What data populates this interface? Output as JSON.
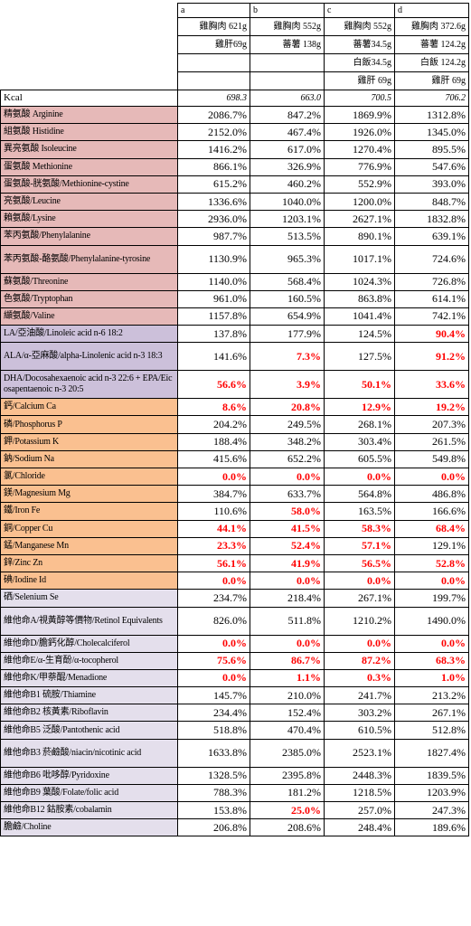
{
  "header": {
    "columns": [
      {
        "id": "a",
        "line1": "雞胸肉 621g",
        "line2": "雞肝69g",
        "line3": "",
        "line4": ""
      },
      {
        "id": "b",
        "line1": "雞胸肉 552g",
        "line2": "蕃薯 138g",
        "line3": "",
        "line4": ""
      },
      {
        "id": "c",
        "line1": "雞胸肉 552g",
        "line2": "蕃薯34.5g",
        "line3": "白飯34.5g",
        "line4": "雞肝 69g"
      },
      {
        "id": "d",
        "line1": "雞胸肉 372.6g",
        "line2": "蕃薯 124.2g",
        "line3": "白飯 124.2g",
        "line4": "雞肝 69g"
      }
    ]
  },
  "kcal": {
    "label": "Kcal",
    "values": [
      "698.3",
      "663.0",
      "700.5",
      "706.2"
    ]
  },
  "rows": [
    {
      "label": "精氨酸 Arginine",
      "group": "pink",
      "values": [
        "2086.7%",
        "847.2%",
        "1869.9%",
        "1312.8%"
      ],
      "red": [
        false,
        false,
        false,
        false
      ]
    },
    {
      "label": "組氨酸 Histidine",
      "group": "pink",
      "values": [
        "2152.0%",
        "467.4%",
        "1926.0%",
        "1345.0%"
      ],
      "red": [
        false,
        false,
        false,
        false
      ]
    },
    {
      "label": "異亮氨酸 Isoleucine",
      "group": "pink",
      "values": [
        "1416.2%",
        "617.0%",
        "1270.4%",
        "895.5%"
      ],
      "red": [
        false,
        false,
        false,
        false
      ]
    },
    {
      "label": "蛋氨酸 Methionine",
      "group": "pink",
      "values": [
        "866.1%",
        "326.9%",
        "776.9%",
        "547.6%"
      ],
      "red": [
        false,
        false,
        false,
        false
      ]
    },
    {
      "label": "蛋氨酸-胱氨酸/Methionine-cystine",
      "group": "pink",
      "values": [
        "615.2%",
        "460.2%",
        "552.9%",
        "393.0%"
      ],
      "red": [
        false,
        false,
        false,
        false
      ]
    },
    {
      "label": "亮氨酸/Leucine",
      "group": "pink",
      "values": [
        "1336.6%",
        "1040.0%",
        "1200.0%",
        "848.7%"
      ],
      "red": [
        false,
        false,
        false,
        false
      ]
    },
    {
      "label": "賴氨酸/Lysine",
      "group": "pink",
      "values": [
        "2936.0%",
        "1203.1%",
        "2627.1%",
        "1832.8%"
      ],
      "red": [
        false,
        false,
        false,
        false
      ]
    },
    {
      "label": "苯丙氨酸/Phenylalanine",
      "group": "pink",
      "values": [
        "987.7%",
        "513.5%",
        "890.1%",
        "639.1%"
      ],
      "red": [
        false,
        false,
        false,
        false
      ]
    },
    {
      "label": "苯丙氨酸-酪氨酸/Phenylalanine-tyrosine",
      "group": "pink",
      "values": [
        "1130.9%",
        "965.3%",
        "1017.1%",
        "724.6%"
      ],
      "red": [
        false,
        false,
        false,
        false
      ],
      "tall": true
    },
    {
      "label": "蘇氨酸/Threonine",
      "group": "pink",
      "values": [
        "1140.0%",
        "568.4%",
        "1024.3%",
        "726.8%"
      ],
      "red": [
        false,
        false,
        false,
        false
      ]
    },
    {
      "label": "色氨酸/Tryptophan",
      "group": "pink",
      "values": [
        "961.0%",
        "160.5%",
        "863.8%",
        "614.1%"
      ],
      "red": [
        false,
        false,
        false,
        false
      ]
    },
    {
      "label": "纈氨酸/Valine",
      "group": "pink",
      "values": [
        "1157.8%",
        "654.9%",
        "1041.4%",
        "742.1%"
      ],
      "red": [
        false,
        false,
        false,
        false
      ]
    },
    {
      "label": "LA/亞油酸/Linoleic acid n-6 18:2",
      "group": "lav",
      "values": [
        "137.8%",
        "177.9%",
        "124.5%",
        "90.4%"
      ],
      "red": [
        false,
        false,
        false,
        true
      ]
    },
    {
      "label": "ALA/α-亞麻酸/alpha-Linolenic acid n-3 18:3",
      "group": "lav",
      "values": [
        "141.6%",
        "7.3%",
        "127.5%",
        "91.2%"
      ],
      "red": [
        false,
        true,
        false,
        true
      ],
      "tall": true
    },
    {
      "label": "DHA/Docosahexaenoic acid n-3 22:6 + EPA/Eicosapentaenoic n-3 20:5",
      "group": "lav",
      "values": [
        "56.6%",
        "3.9%",
        "50.1%",
        "33.6%"
      ],
      "red": [
        true,
        true,
        true,
        true
      ],
      "tall": true
    },
    {
      "label": "鈣/Calcium Ca",
      "group": "orange",
      "values": [
        "8.6%",
        "20.8%",
        "12.9%",
        "19.2%"
      ],
      "red": [
        true,
        true,
        true,
        true
      ]
    },
    {
      "label": "磷/Phosphorus P",
      "group": "orange",
      "values": [
        "204.2%",
        "249.5%",
        "268.1%",
        "207.3%"
      ],
      "red": [
        false,
        false,
        false,
        false
      ]
    },
    {
      "label": "鉀/Potassium K",
      "group": "orange",
      "values": [
        "188.4%",
        "348.2%",
        "303.4%",
        "261.5%"
      ],
      "red": [
        false,
        false,
        false,
        false
      ]
    },
    {
      "label": "鈉/Sodium Na",
      "group": "orange",
      "values": [
        "415.6%",
        "652.2%",
        "605.5%",
        "549.8%"
      ],
      "red": [
        false,
        false,
        false,
        false
      ]
    },
    {
      "label": "氯/Chloride",
      "group": "orange",
      "values": [
        "0.0%",
        "0.0%",
        "0.0%",
        "0.0%"
      ],
      "red": [
        true,
        true,
        true,
        true
      ]
    },
    {
      "label": "鎂/Magnesium Mg",
      "group": "orange",
      "values": [
        "384.7%",
        "633.7%",
        "564.8%",
        "486.8%"
      ],
      "red": [
        false,
        false,
        false,
        false
      ]
    },
    {
      "label": "鐵/Iron Fe",
      "group": "orange",
      "values": [
        "110.6%",
        "58.0%",
        "163.5%",
        "166.6%"
      ],
      "red": [
        false,
        true,
        false,
        false
      ]
    },
    {
      "label": "銅/Copper Cu",
      "group": "orange",
      "values": [
        "44.1%",
        "41.5%",
        "58.3%",
        "68.4%"
      ],
      "red": [
        true,
        true,
        true,
        true
      ]
    },
    {
      "label": "錳/Manganese Mn",
      "group": "orange",
      "values": [
        "23.3%",
        "52.4%",
        "57.1%",
        "129.1%"
      ],
      "red": [
        true,
        true,
        true,
        false
      ]
    },
    {
      "label": "鋅/Zinc Zn",
      "group": "orange",
      "values": [
        "56.1%",
        "41.9%",
        "56.5%",
        "52.8%"
      ],
      "red": [
        true,
        true,
        true,
        true
      ]
    },
    {
      "label": "碘/Iodine Id",
      "group": "orange",
      "values": [
        "0.0%",
        "0.0%",
        "0.0%",
        "0.0%"
      ],
      "red": [
        true,
        true,
        true,
        true
      ]
    },
    {
      "label": "硒/Selenium Se",
      "group": "lilac",
      "values": [
        "234.7%",
        "218.4%",
        "267.1%",
        "199.7%"
      ],
      "red": [
        false,
        false,
        false,
        false
      ]
    },
    {
      "label": "維他命A/視黃醇等價物/Retinol Equivalents",
      "group": "lilac",
      "values": [
        "826.0%",
        "511.8%",
        "1210.2%",
        "1490.0%"
      ],
      "red": [
        false,
        false,
        false,
        false
      ],
      "tall": true
    },
    {
      "label": "維他命D/膽鈣化醇/Cholecalciferol",
      "group": "lilac",
      "values": [
        "0.0%",
        "0.0%",
        "0.0%",
        "0.0%"
      ],
      "red": [
        true,
        true,
        true,
        true
      ]
    },
    {
      "label": "維他命E/α-生育酚/α-tocopherol",
      "group": "lilac",
      "values": [
        "75.6%",
        "86.7%",
        "87.2%",
        "68.3%"
      ],
      "red": [
        true,
        true,
        true,
        true
      ]
    },
    {
      "label": "維他命K/甲萘醌/Menadione",
      "group": "lilac",
      "values": [
        "0.0%",
        "1.1%",
        "0.3%",
        "1.0%"
      ],
      "red": [
        true,
        true,
        true,
        true
      ]
    },
    {
      "label": "維他命B1 硫胺/Thiamine",
      "group": "lilac",
      "values": [
        "145.7%",
        "210.0%",
        "241.7%",
        "213.2%"
      ],
      "red": [
        false,
        false,
        false,
        false
      ]
    },
    {
      "label": "維他命B2 核黃素/Riboflavin",
      "group": "lilac",
      "values": [
        "234.4%",
        "152.4%",
        "303.2%",
        "267.1%"
      ],
      "red": [
        false,
        false,
        false,
        false
      ]
    },
    {
      "label": "維他命B5 泛酸/Pantothenic acid",
      "group": "lilac",
      "values": [
        "518.8%",
        "470.4%",
        "610.5%",
        "512.8%"
      ],
      "red": [
        false,
        false,
        false,
        false
      ]
    },
    {
      "label": "維他命B3 菸鹼酸/niacin/nicotinic acid",
      "group": "lilac",
      "values": [
        "1633.8%",
        "2385.0%",
        "2523.1%",
        "1827.4%"
      ],
      "red": [
        false,
        false,
        false,
        false
      ],
      "tall": true
    },
    {
      "label": "維他命B6 吡哆醇/Pyridoxine",
      "group": "lilac",
      "values": [
        "1328.5%",
        "2395.8%",
        "2448.3%",
        "1839.5%"
      ],
      "red": [
        false,
        false,
        false,
        false
      ]
    },
    {
      "label": "維他命B9 葉酸/Folate/folic acid",
      "group": "lilac",
      "values": [
        "788.3%",
        "181.2%",
        "1218.5%",
        "1203.9%"
      ],
      "red": [
        false,
        false,
        false,
        false
      ]
    },
    {
      "label": "維他命B12 鈷胺素/cobalamin",
      "group": "lilac",
      "values": [
        "153.8%",
        "25.0%",
        "257.0%",
        "247.3%"
      ],
      "red": [
        false,
        true,
        false,
        false
      ]
    },
    {
      "label": "膽鹼/Choline",
      "group": "lilac",
      "values": [
        "206.8%",
        "208.6%",
        "248.4%",
        "189.6%"
      ],
      "red": [
        false,
        false,
        false,
        false
      ]
    }
  ]
}
